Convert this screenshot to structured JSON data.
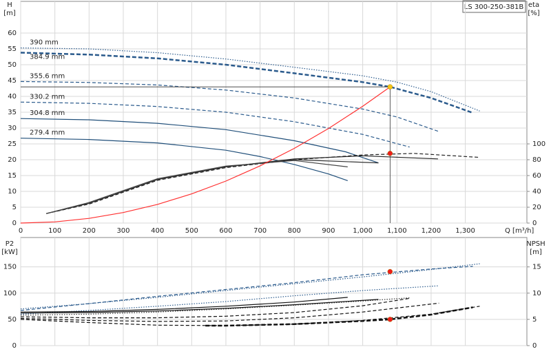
{
  "chart_data": [
    {
      "type": "line",
      "title": "LS 300-250-381B",
      "xlabel": "Q [m³/h]",
      "ylabel": "H",
      "yunit": "[m]",
      "y2label": "eta",
      "y2unit": "[%]",
      "xlim": [
        0,
        1480
      ],
      "xticks": [
        0,
        100,
        200,
        300,
        400,
        500,
        600,
        700,
        800,
        900,
        {
          "value": 1000,
          "label": "1,000"
        },
        {
          "value": 1100,
          "label": "1,100"
        },
        {
          "value": 1200,
          "label": "1,200"
        },
        {
          "value": 1300,
          "label": "1,300"
        }
      ],
      "ylim": [
        0,
        70
      ],
      "yticks": [
        0,
        5,
        10,
        15,
        20,
        25,
        30,
        35,
        40,
        45,
        50,
        55,
        60
      ],
      "y2lim": [
        0,
        280
      ],
      "y2ticks": [
        0,
        20,
        40,
        60,
        80,
        100
      ],
      "grid": true,
      "series": [
        {
          "name": "390 mm",
          "color": "#2a5a8c",
          "style": "dotted",
          "x": [
            0,
            200,
            400,
            600,
            800,
            1000,
            1100,
            1200,
            1342
          ],
          "values": [
            55.3,
            55,
            53.8,
            51.8,
            49.2,
            46.5,
            44.5,
            41.5,
            35.4
          ]
        },
        {
          "name": "384.9 mm",
          "color": "#2a5a8c",
          "style": "bold-dashed",
          "x": [
            0,
            200,
            400,
            600,
            800,
            1000,
            1080,
            1200,
            1322
          ],
          "values": [
            53.8,
            53.2,
            52,
            50,
            47.3,
            44.5,
            43,
            39.5,
            34.8
          ]
        },
        {
          "name": "355.6 mm",
          "color": "#2a5a8c",
          "style": "dashed",
          "x": [
            0,
            200,
            400,
            600,
            800,
            1000,
            1100,
            1223
          ],
          "values": [
            44.7,
            44.4,
            43.6,
            42,
            39.5,
            36,
            33.5,
            28.9
          ]
        },
        {
          "name": "330.2 mm",
          "color": "#2a5a8c",
          "style": "dashed",
          "x": [
            0,
            200,
            400,
            600,
            800,
            1000,
            1137
          ],
          "values": [
            38.2,
            37.8,
            36.8,
            35,
            32,
            28,
            24
          ]
        },
        {
          "name": "304.8 mm",
          "color": "#1f4e79",
          "style": "solid",
          "x": [
            0,
            200,
            400,
            600,
            800,
            950,
            1046
          ],
          "values": [
            33,
            32.6,
            31.5,
            29.5,
            26,
            22.5,
            19
          ]
        },
        {
          "name": "279.4 mm",
          "color": "#1f4e79",
          "style": "solid",
          "x": [
            0,
            200,
            400,
            600,
            700,
            800,
            900,
            956
          ],
          "values": [
            26.8,
            26.4,
            25.3,
            23,
            21,
            18.5,
            15.5,
            13.4
          ]
        },
        {
          "color": "#222222",
          "style": "dashed",
          "axis": "y2",
          "x": [
            75,
            200,
            400,
            600,
            800,
            1000,
            1150,
            1342
          ],
          "values": [
            12,
            24,
            54,
            70,
            80,
            86,
            88,
            83
          ]
        },
        {
          "color": "#222222",
          "style": "solid",
          "axis": "y2",
          "x": [
            75,
            200,
            400,
            600,
            800,
            1000,
            1220
          ],
          "values": [
            12,
            25,
            55,
            71,
            81,
            85,
            81
          ]
        },
        {
          "color": "#333333",
          "style": "solid",
          "axis": "y2",
          "x": [
            75,
            200,
            400,
            600,
            800,
            1046
          ],
          "values": [
            12,
            25,
            55,
            71,
            80,
            76
          ]
        },
        {
          "color": "#444444",
          "style": "solid",
          "axis": "y2",
          "x": [
            75,
            200,
            400,
            600,
            800,
            956
          ],
          "values": [
            12,
            26,
            56,
            72,
            79,
            71
          ]
        },
        {
          "color": "#ff3030",
          "style": "solid",
          "x": [
            0,
            100,
            200,
            300,
            400,
            500,
            600,
            700,
            800,
            900,
            1000,
            1080
          ],
          "values": [
            0,
            0.37,
            1.47,
            3.32,
            5.9,
            9.22,
            13.27,
            18.06,
            23.59,
            29.86,
            36.87,
            43
          ]
        },
        {
          "color": "#f5c518",
          "marker": true,
          "crosshair": true,
          "x": [
            1080
          ],
          "values": [
            43
          ]
        },
        {
          "color": "#ee1c1c",
          "marker": true,
          "axis": "y2",
          "x": [
            1080
          ],
          "values": [
            88
          ]
        }
      ]
    },
    {
      "type": "line",
      "ylabel": "P2",
      "yunit": "[kW]",
      "y2label": "NPSH",
      "y2unit": "[m]",
      "xlim": [
        0,
        1480
      ],
      "ylim": [
        0,
        206
      ],
      "yticks": [
        0,
        50,
        100,
        150
      ],
      "y2lim": [
        0,
        20.6
      ],
      "y2ticks": [
        0,
        5,
        10,
        15
      ],
      "grid": true,
      "series": [
        {
          "color": "#2a5a8c",
          "style": "dotted",
          "x": [
            0,
            200,
            400,
            600,
            800,
            1000,
            1200,
            1342
          ],
          "values": [
            70,
            80,
            92,
            105,
            118,
            131,
            145,
            156
          ]
        },
        {
          "color": "#2a5a8c",
          "style": "dashed",
          "x": [
            0,
            200,
            400,
            600,
            800,
            1000,
            1200,
            1322
          ],
          "values": [
            67,
            80,
            94,
            107,
            120,
            135,
            146,
            151
          ]
        },
        {
          "color": "#2a5a8c",
          "style": "dotted",
          "x": [
            0,
            200,
            400,
            600,
            800,
            1000,
            1223
          ],
          "values": [
            60,
            67,
            75,
            84,
            95,
            105,
            114
          ]
        },
        {
          "color": "#333333",
          "style": "dotted",
          "x": [
            0,
            200,
            400,
            600,
            800,
            1000,
            1137
          ],
          "values": [
            58,
            60,
            64,
            70,
            77,
            85,
            91
          ]
        },
        {
          "color": "#111111",
          "style": "solid",
          "x": [
            0,
            200,
            400,
            600,
            800,
            1046
          ],
          "values": [
            62,
            63,
            66,
            71,
            78,
            88
          ]
        },
        {
          "color": "#111111",
          "style": "solid",
          "x": [
            0,
            200,
            400,
            600,
            800,
            956
          ],
          "values": [
            64,
            65,
            69,
            75,
            83,
            92
          ]
        },
        {
          "color": "#111111",
          "style": "dashed",
          "axis": "y2",
          "x": [
            0,
            200,
            400,
            600,
            800,
            1000,
            1200,
            1342
          ],
          "values": [
            5,
            4.4,
            3.9,
            3.8,
            4.1,
            4.8,
            6,
            7.5
          ]
        },
        {
          "color": "#111111",
          "style": "bold-dashed",
          "axis": "y2",
          "x": [
            540,
            600,
            800,
            1000,
            1080,
            1200,
            1322
          ],
          "values": [
            3.8,
            3.8,
            4.1,
            4.7,
            5,
            5.9,
            7.3
          ]
        },
        {
          "color": "#111111",
          "style": "dashed",
          "axis": "y2",
          "x": [
            0,
            200,
            400,
            600,
            800,
            1000,
            1223
          ],
          "values": [
            5.2,
            4.8,
            4.6,
            4.7,
            5.3,
            6.4,
            8.1
          ]
        },
        {
          "color": "#111111",
          "style": "dashed",
          "axis": "y2",
          "x": [
            0,
            200,
            400,
            600,
            800,
            1000,
            1137
          ],
          "values": [
            5.5,
            5.3,
            5.3,
            5.6,
            6.3,
            7.6,
            9
          ]
        },
        {
          "color": "#ee1c1c",
          "marker": true,
          "x": [
            1080
          ],
          "values": [
            141
          ]
        },
        {
          "color": "#ee1c1c",
          "marker": true,
          "axis": "y2",
          "x": [
            1080
          ],
          "values": [
            5
          ]
        }
      ]
    }
  ]
}
